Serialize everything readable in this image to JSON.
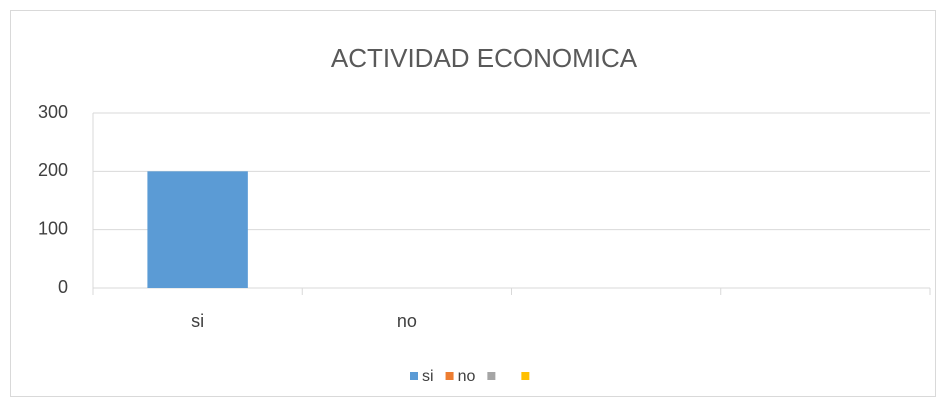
{
  "chart_data": {
    "type": "bar",
    "title": "ACTIVIDAD ECONOMICA",
    "categories": [
      "si",
      "no",
      null,
      null
    ],
    "values": [
      200,
      0,
      null,
      null
    ],
    "colors": [
      "#5b9bd5",
      "#ed7d31",
      "#a5a5a5",
      "#ffc000"
    ],
    "ylim": [
      0,
      300
    ],
    "yticks": [
      0,
      100,
      200,
      300
    ],
    "grid": true,
    "legend": "bottom"
  }
}
